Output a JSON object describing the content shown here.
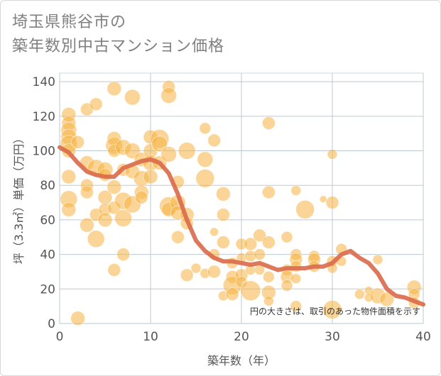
{
  "title": {
    "line1": "埼玉県熊谷市の",
    "line2": "築年数別中古マンション価格"
  },
  "note": "円の大きさは、取引のあった物件面積を示す",
  "chart_data": {
    "type": "scatter",
    "xlabel": "築年数（年）",
    "ylabel": "坪（3.3㎡）単価（万円）",
    "xlim": [
      0,
      40
    ],
    "ylim": [
      0,
      145
    ],
    "xticks": [
      0,
      10,
      20,
      30,
      40
    ],
    "yticks": [
      0,
      20,
      40,
      60,
      80,
      100,
      120,
      140
    ],
    "grid": true,
    "colors": {
      "bubble": "#f5b342",
      "trend": "#d9694a",
      "grid": "#b9c9d6"
    },
    "trend": {
      "x": [
        0,
        1,
        2,
        3,
        4,
        5,
        6,
        7,
        8,
        9,
        10,
        11,
        12,
        13,
        14,
        15,
        16,
        17,
        18,
        19,
        20,
        21,
        22,
        23,
        24,
        25,
        26,
        27,
        28,
        29,
        30,
        31,
        32,
        33,
        34,
        35,
        36,
        37,
        38,
        39,
        40
      ],
      "y": [
        102,
        99,
        93,
        88,
        86,
        85,
        85,
        90,
        92,
        94,
        95,
        93,
        87,
        75,
        60,
        48,
        42,
        38,
        36,
        36,
        35,
        34,
        35,
        33,
        31,
        32,
        32,
        32,
        33,
        33,
        35,
        40,
        42,
        38,
        35,
        29,
        20,
        16,
        15,
        13,
        11
      ]
    },
    "points": [
      {
        "x": 1,
        "y": 121,
        "s": 10
      },
      {
        "x": 1,
        "y": 116,
        "s": 10
      },
      {
        "x": 1,
        "y": 112,
        "s": 11
      },
      {
        "x": 1,
        "y": 108,
        "s": 11
      },
      {
        "x": 1,
        "y": 104,
        "s": 12
      },
      {
        "x": 1,
        "y": 100,
        "s": 10
      },
      {
        "x": 1,
        "y": 85,
        "s": 10
      },
      {
        "x": 1,
        "y": 72,
        "s": 12
      },
      {
        "x": 1,
        "y": 66,
        "s": 10
      },
      {
        "x": 2,
        "y": 105,
        "s": 9
      },
      {
        "x": 2,
        "y": 3,
        "s": 10
      },
      {
        "x": 3,
        "y": 124,
        "s": 9
      },
      {
        "x": 3,
        "y": 93,
        "s": 10
      },
      {
        "x": 3,
        "y": 80,
        "s": 9
      },
      {
        "x": 3,
        "y": 76,
        "s": 9
      },
      {
        "x": 3,
        "y": 57,
        "s": 10
      },
      {
        "x": 4,
        "y": 127,
        "s": 9
      },
      {
        "x": 4,
        "y": 90,
        "s": 12
      },
      {
        "x": 4,
        "y": 63,
        "s": 9
      },
      {
        "x": 4,
        "y": 49,
        "s": 12
      },
      {
        "x": 5,
        "y": 89,
        "s": 11
      },
      {
        "x": 5,
        "y": 86,
        "s": 9
      },
      {
        "x": 5,
        "y": 73,
        "s": 10
      },
      {
        "x": 5,
        "y": 66,
        "s": 9
      },
      {
        "x": 5,
        "y": 60,
        "s": 10
      },
      {
        "x": 6,
        "y": 136,
        "s": 10
      },
      {
        "x": 6,
        "y": 107,
        "s": 10
      },
      {
        "x": 6,
        "y": 103,
        "s": 12
      },
      {
        "x": 6,
        "y": 100,
        "s": 9
      },
      {
        "x": 6,
        "y": 79,
        "s": 10
      },
      {
        "x": 6,
        "y": 67,
        "s": 9
      },
      {
        "x": 6,
        "y": 31,
        "s": 9
      },
      {
        "x": 7,
        "y": 102,
        "s": 11
      },
      {
        "x": 7,
        "y": 89,
        "s": 9
      },
      {
        "x": 7,
        "y": 71,
        "s": 12
      },
      {
        "x": 7,
        "y": 61,
        "s": 12
      },
      {
        "x": 7,
        "y": 40,
        "s": 9
      },
      {
        "x": 8,
        "y": 131,
        "s": 11
      },
      {
        "x": 8,
        "y": 100,
        "s": 11
      },
      {
        "x": 8,
        "y": 88,
        "s": 10
      },
      {
        "x": 8,
        "y": 69,
        "s": 12
      },
      {
        "x": 9,
        "y": 95,
        "s": 10
      },
      {
        "x": 9,
        "y": 84,
        "s": 11
      },
      {
        "x": 9,
        "y": 76,
        "s": 10
      },
      {
        "x": 9,
        "y": 73,
        "s": 9
      },
      {
        "x": 10,
        "y": 108,
        "s": 10
      },
      {
        "x": 10,
        "y": 100,
        "s": 10
      },
      {
        "x": 10,
        "y": 93,
        "s": 11
      },
      {
        "x": 10,
        "y": 85,
        "s": 10
      },
      {
        "x": 11,
        "y": 107,
        "s": 13
      },
      {
        "x": 11,
        "y": 104,
        "s": 11
      },
      {
        "x": 11,
        "y": 93,
        "s": 10
      },
      {
        "x": 12,
        "y": 137,
        "s": 9
      },
      {
        "x": 12,
        "y": 132,
        "s": 11
      },
      {
        "x": 12,
        "y": 98,
        "s": 11
      },
      {
        "x": 12,
        "y": 68,
        "s": 13
      },
      {
        "x": 12,
        "y": 66,
        "s": 10
      },
      {
        "x": 13,
        "y": 82,
        "s": 9
      },
      {
        "x": 13,
        "y": 70,
        "s": 11
      },
      {
        "x": 13,
        "y": 64,
        "s": 10
      },
      {
        "x": 13,
        "y": 50,
        "s": 9
      },
      {
        "x": 14,
        "y": 100,
        "s": 12
      },
      {
        "x": 14,
        "y": 63,
        "s": 10
      },
      {
        "x": 14,
        "y": 58,
        "s": 9
      },
      {
        "x": 14,
        "y": 28,
        "s": 9
      },
      {
        "x": 15,
        "y": 32,
        "s": 7
      },
      {
        "x": 16,
        "y": 113,
        "s": 8
      },
      {
        "x": 16,
        "y": 95,
        "s": 11
      },
      {
        "x": 16,
        "y": 84,
        "s": 13
      },
      {
        "x": 16,
        "y": 29,
        "s": 7
      },
      {
        "x": 17,
        "y": 106,
        "s": 9
      },
      {
        "x": 17,
        "y": 53,
        "s": 6
      },
      {
        "x": 17,
        "y": 40,
        "s": 8
      },
      {
        "x": 17,
        "y": 30,
        "s": 9
      },
      {
        "x": 18,
        "y": 75,
        "s": 10
      },
      {
        "x": 18,
        "y": 63,
        "s": 9
      },
      {
        "x": 18,
        "y": 47,
        "s": 9
      },
      {
        "x": 18,
        "y": 16,
        "s": 7
      },
      {
        "x": 19,
        "y": 35,
        "s": 8
      },
      {
        "x": 19,
        "y": 27,
        "s": 9
      },
      {
        "x": 19,
        "y": 22,
        "s": 13
      },
      {
        "x": 19,
        "y": 17,
        "s": 9
      },
      {
        "x": 20,
        "y": 46,
        "s": 8
      },
      {
        "x": 20,
        "y": 38,
        "s": 7
      },
      {
        "x": 20,
        "y": 28,
        "s": 9
      },
      {
        "x": 20,
        "y": 24,
        "s": 8
      },
      {
        "x": 21,
        "y": 46,
        "s": 9
      },
      {
        "x": 21,
        "y": 39,
        "s": 8
      },
      {
        "x": 21,
        "y": 31,
        "s": 7
      },
      {
        "x": 21,
        "y": 19,
        "s": 14
      },
      {
        "x": 22,
        "y": 51,
        "s": 9
      },
      {
        "x": 22,
        "y": 40,
        "s": 8
      },
      {
        "x": 22,
        "y": 31,
        "s": 7
      },
      {
        "x": 23,
        "y": 116,
        "s": 9
      },
      {
        "x": 23,
        "y": 76,
        "s": 9
      },
      {
        "x": 23,
        "y": 47,
        "s": 9
      },
      {
        "x": 23,
        "y": 27,
        "s": 8
      },
      {
        "x": 23,
        "y": 18,
        "s": 10
      },
      {
        "x": 23,
        "y": 13,
        "s": 7
      },
      {
        "x": 25,
        "y": 50,
        "s": 8
      },
      {
        "x": 25,
        "y": 31,
        "s": 8
      },
      {
        "x": 25,
        "y": 27,
        "s": 9
      },
      {
        "x": 25,
        "y": 22,
        "s": 8
      },
      {
        "x": 26,
        "y": 77,
        "s": 7
      },
      {
        "x": 26,
        "y": 40,
        "s": 8
      },
      {
        "x": 26,
        "y": 37,
        "s": 9
      },
      {
        "x": 26,
        "y": 33,
        "s": 8
      },
      {
        "x": 26,
        "y": 26,
        "s": 7
      },
      {
        "x": 26,
        "y": 10,
        "s": 8
      },
      {
        "x": 27,
        "y": 66,
        "s": 13
      },
      {
        "x": 28,
        "y": 39,
        "s": 8
      },
      {
        "x": 28,
        "y": 37,
        "s": 9
      },
      {
        "x": 28,
        "y": 33,
        "s": 8
      },
      {
        "x": 29,
        "y": 72,
        "s": 5
      },
      {
        "x": 30,
        "y": 98,
        "s": 7
      },
      {
        "x": 30,
        "y": 70,
        "s": 9
      },
      {
        "x": 30,
        "y": 36,
        "s": 8
      },
      {
        "x": 30,
        "y": 32,
        "s": 7
      },
      {
        "x": 30,
        "y": 8,
        "s": 13
      },
      {
        "x": 31,
        "y": 43,
        "s": 8
      },
      {
        "x": 31,
        "y": 36,
        "s": 7
      },
      {
        "x": 33,
        "y": 17,
        "s": 7
      },
      {
        "x": 34,
        "y": 19,
        "s": 6
      },
      {
        "x": 34,
        "y": 15,
        "s": 6
      },
      {
        "x": 35,
        "y": 37,
        "s": 7
      },
      {
        "x": 35,
        "y": 16,
        "s": 11
      },
      {
        "x": 36,
        "y": 14,
        "s": 10
      },
      {
        "x": 39,
        "y": 21,
        "s": 10
      },
      {
        "x": 39,
        "y": 17,
        "s": 8
      },
      {
        "x": 39,
        "y": 12,
        "s": 8
      }
    ]
  }
}
